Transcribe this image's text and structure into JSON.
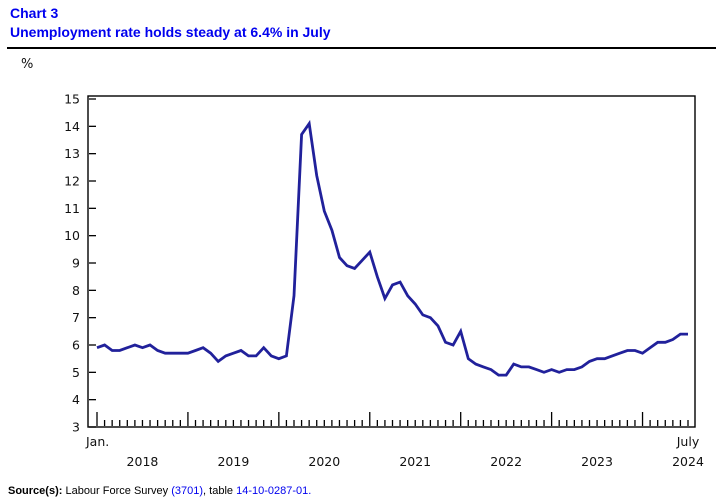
{
  "header": {
    "chart_label": "Chart 3",
    "title": "Unemployment rate holds steady at 6.4% in July"
  },
  "chart_data": {
    "type": "line",
    "title": "Unemployment rate holds steady at 6.4% in July",
    "unit": "%",
    "ylabel": "%",
    "xlabel": "",
    "ylim": [
      3,
      15
    ],
    "y_tick_step": 1,
    "grid": false,
    "legend": "none",
    "x_start_label": "Jan.",
    "x_end_label": "July",
    "year_labels": [
      "2018",
      "2019",
      "2020",
      "2021",
      "2022",
      "2023",
      "2024"
    ],
    "line_color": "#21219B",
    "series": [
      {
        "name": "Unemployment rate",
        "start": "January 2018",
        "end": "July 2024",
        "frequency": "monthly",
        "values": [
          5.9,
          6.0,
          5.8,
          5.8,
          5.9,
          6.0,
          5.9,
          6.0,
          5.8,
          5.7,
          5.7,
          5.7,
          5.7,
          5.8,
          5.9,
          5.7,
          5.4,
          5.6,
          5.7,
          5.8,
          5.6,
          5.6,
          5.9,
          5.6,
          5.5,
          5.6,
          7.8,
          13.7,
          14.1,
          12.2,
          10.9,
          10.2,
          9.2,
          8.9,
          8.8,
          9.1,
          9.4,
          8.5,
          7.7,
          8.2,
          8.3,
          7.8,
          7.5,
          7.1,
          7.0,
          6.7,
          6.1,
          6.0,
          6.5,
          5.5,
          5.3,
          5.2,
          5.1,
          4.9,
          4.9,
          5.3,
          5.2,
          5.2,
          5.1,
          5.0,
          5.1,
          5.0,
          5.1,
          5.1,
          5.2,
          5.4,
          5.5,
          5.5,
          5.6,
          5.7,
          5.8,
          5.8,
          5.7,
          5.9,
          6.1,
          6.1,
          6.2,
          6.4,
          6.4
        ]
      }
    ]
  },
  "source": {
    "prefix": "Source(s):",
    "text_1": " Labour Force Survey ",
    "link_survey": "(3701)",
    "text_2": ", table ",
    "link_table": "14-10-0287-01."
  },
  "colors": {
    "title_blue": "#0000EE",
    "link_blue": "#0000EE",
    "line_navy": "#21219B",
    "axis_black": "#000000"
  }
}
